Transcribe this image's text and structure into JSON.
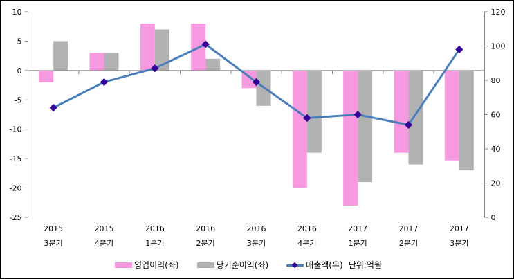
{
  "chart_data": {
    "type": "bar+line",
    "categories": [
      [
        "2015",
        "3분기"
      ],
      [
        "2015",
        "4분기"
      ],
      [
        "2016",
        "1분기"
      ],
      [
        "2016",
        "2분기"
      ],
      [
        "2016",
        "3분기"
      ],
      [
        "2016",
        "4분기"
      ],
      [
        "2017",
        "1분기"
      ],
      [
        "2017",
        "2분기"
      ],
      [
        "2017",
        "3분기"
      ]
    ],
    "series": [
      {
        "name": "영업이익(좌)",
        "type": "bar",
        "axis": "left",
        "color": "#f799e0",
        "values": [
          -2,
          3,
          8,
          8,
          -3,
          -20,
          -23,
          -14,
          -15.3
        ]
      },
      {
        "name": "당기순이익(좌)",
        "type": "bar",
        "axis": "left",
        "color": "#b2b2b2",
        "values": [
          5,
          3,
          7,
          2,
          -6,
          -14,
          -19,
          -16,
          -17
        ]
      },
      {
        "name": "매출액(우)",
        "type": "line",
        "axis": "right",
        "color": "#4a7ebb",
        "marker_color": "#330099",
        "values": [
          64,
          79,
          87,
          101,
          79,
          58,
          60,
          54,
          98
        ]
      }
    ],
    "left_axis": {
      "ylim": [
        -25,
        10
      ],
      "ticks": [
        10,
        5,
        0,
        -5,
        -10,
        -15,
        -20,
        -25
      ]
    },
    "right_axis": {
      "ylim": [
        0,
        120
      ],
      "ticks": [
        120,
        100,
        80,
        60,
        40,
        20,
        0
      ]
    },
    "unit_note": "단위:억원",
    "grid": false,
    "legend_position": "bottom"
  }
}
